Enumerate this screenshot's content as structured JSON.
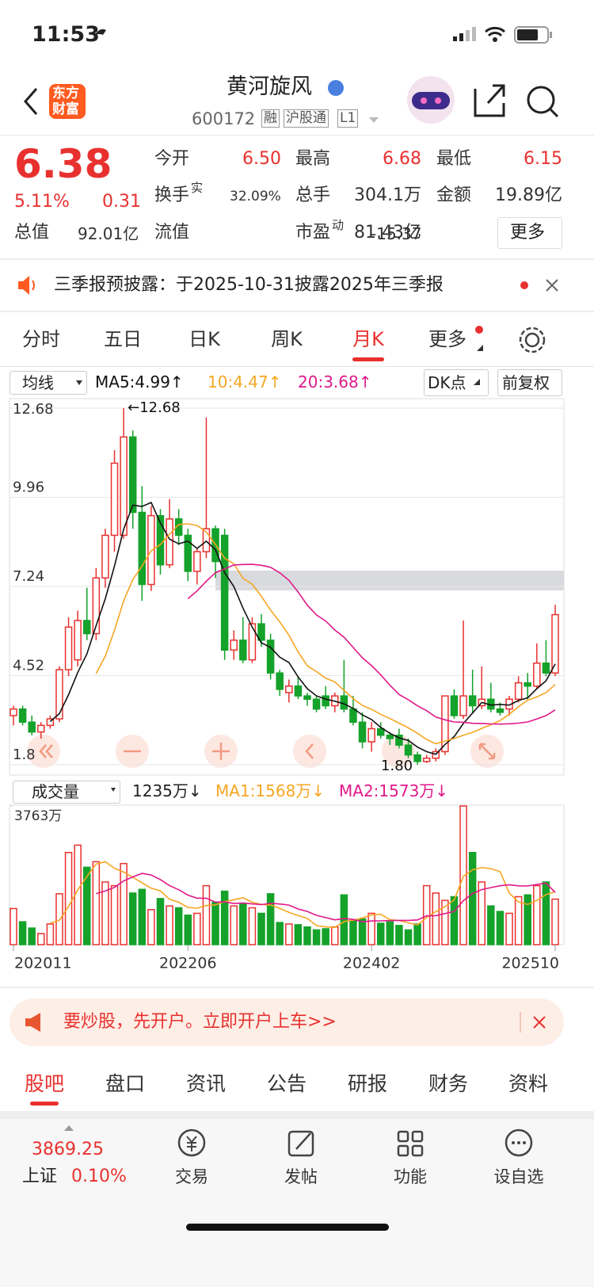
{
  "status_bar": {
    "time": "11:53"
  },
  "header": {
    "logo": [
      "东方",
      "财富"
    ],
    "name": "黄河旋风",
    "code": "600172",
    "tags": [
      "融",
      "沪股通",
      "L1"
    ]
  },
  "quote": {
    "price": "6.38",
    "change_pct": "5.11%",
    "change": "0.31",
    "row1": [
      {
        "label": "今开",
        "value": "6.50"
      },
      {
        "label": "最高",
        "value": "6.68"
      },
      {
        "label": "最低",
        "value": "6.15"
      }
    ],
    "row2": [
      {
        "label": "换手",
        "sup": "实",
        "value": "32.09%"
      },
      {
        "label": "总手",
        "value": "304.1万"
      },
      {
        "label": "金额",
        "value": "19.89亿"
      }
    ],
    "row3": [
      {
        "label": "总值",
        "value": "92.01亿"
      },
      {
        "label": "流值",
        "value": "81.43亿"
      },
      {
        "label": "市盈",
        "sup": "动",
        "value": "-15.37"
      }
    ],
    "more": "更多"
  },
  "notice": "三季报预披露：于2025-10-31披露2025年三季报",
  "period_tabs": {
    "items": [
      "分时",
      "五日",
      "日K",
      "周K",
      "月K",
      "更多"
    ],
    "active": 4
  },
  "chart_toolbar": {
    "selector": "均线",
    "ma_labels": [
      "MA5:4.99↑",
      "10:4.47↑",
      "20:3.68↑"
    ],
    "dk": "DK点",
    "adjust": "前复权"
  },
  "volume_toolbar": {
    "selector": "成交量",
    "current": "1235万↓",
    "ma_labels": [
      "MA1:1568万↓",
      "MA2:1573万↓"
    ]
  },
  "chart_data": [
    {
      "type": "candlestick",
      "ylim": [
        1.8,
        12.68
      ],
      "yticks": [
        12.68,
        9.96,
        7.24,
        4.52,
        1.8
      ],
      "grid": true,
      "up_color": "#e8312f",
      "down_color": "#14a22a",
      "open": [
        3.3,
        3.5,
        3.1,
        2.8,
        3.0,
        3.2,
        4.7,
        5.0,
        6.2,
        5.8,
        7.5,
        8.8,
        8.8,
        11.8,
        9.5,
        7.3,
        9.4,
        7.9,
        9.3,
        8.8,
        7.7,
        8.3,
        9.0,
        8.8,
        5.3,
        5.6,
        5.0,
        6.1,
        5.6,
        4.6,
        4.0,
        4.2,
        3.9,
        3.8,
        3.9,
        3.6,
        3.9,
        3.5,
        3.1,
        2.5,
        2.9,
        2.7,
        2.7,
        2.4,
        2.1,
        1.9,
        2.0,
        2.2,
        3.9,
        3.3,
        3.9,
        3.6,
        3.8,
        3.5,
        3.5,
        3.8,
        4.3,
        4.2,
        4.9,
        4.6
      ],
      "high": [
        3.6,
        3.6,
        3.3,
        3.1,
        3.3,
        4.8,
        6.3,
        6.5,
        7.2,
        7.8,
        9.0,
        11.4,
        12.68,
        12.0,
        10.3,
        9.7,
        9.6,
        9.9,
        9.6,
        9.0,
        8.4,
        12.4,
        9.1,
        9.0,
        5.9,
        6.3,
        6.3,
        6.4,
        5.8,
        4.7,
        4.4,
        4.5,
        4.0,
        3.9,
        4.2,
        4.0,
        5.0,
        3.9,
        3.4,
        3.1,
        3.1,
        2.8,
        2.9,
        2.6,
        2.2,
        2.1,
        2.3,
        3.9,
        4.1,
        6.2,
        4.7,
        4.8,
        4.3,
        3.7,
        3.9,
        4.5,
        4.6,
        5.5,
        5.6,
        6.68
      ],
      "low": [
        3.0,
        3.0,
        2.7,
        2.6,
        2.9,
        3.1,
        4.5,
        4.8,
        5.6,
        5.6,
        7.2,
        8.3,
        8.7,
        9.0,
        6.8,
        7.1,
        7.6,
        7.8,
        8.5,
        7.4,
        7.3,
        8.1,
        7.5,
        5.0,
        5.0,
        4.9,
        4.9,
        5.4,
        4.4,
        3.9,
        3.7,
        3.8,
        3.6,
        3.4,
        3.5,
        3.4,
        3.4,
        3.0,
        2.3,
        2.2,
        2.6,
        2.4,
        2.3,
        2.0,
        1.8,
        1.85,
        1.9,
        2.1,
        3.2,
        3.2,
        3.4,
        3.5,
        3.4,
        3.3,
        3.3,
        3.7,
        3.8,
        4.1,
        4.5,
        4.5
      ],
      "close": [
        3.5,
        3.1,
        2.8,
        3.0,
        3.2,
        4.7,
        6.0,
        6.2,
        5.8,
        7.5,
        8.8,
        11.0,
        11.8,
        9.5,
        7.3,
        9.4,
        7.9,
        9.3,
        8.8,
        7.7,
        8.3,
        9.0,
        8.0,
        5.3,
        5.6,
        5.0,
        6.1,
        5.6,
        4.6,
        4.1,
        4.2,
        3.9,
        3.8,
        3.5,
        3.6,
        3.9,
        3.5,
        3.1,
        2.5,
        2.9,
        2.7,
        2.6,
        2.4,
        2.1,
        1.9,
        2.0,
        2.2,
        3.9,
        3.3,
        3.9,
        3.6,
        3.8,
        3.5,
        3.4,
        3.8,
        4.3,
        4.2,
        4.9,
        4.6,
        6.38
      ],
      "moving_averages": [
        {
          "period": 5,
          "color": "#111111"
        },
        {
          "period": 10,
          "color": "#f5a623"
        },
        {
          "period": 20,
          "color": "#e0198a"
        }
      ],
      "annotations": [
        {
          "text": "←12.68",
          "value": 12.68
        },
        {
          "text": "1.80",
          "value": 1.8
        }
      ]
    },
    {
      "type": "bar",
      "ylim": [
        0,
        3763
      ],
      "yticks": [
        {
          "value": 3763,
          "label": "3763万"
        }
      ],
      "categories": [
        "202011",
        null,
        null,
        null,
        null,
        null,
        null,
        null,
        null,
        null,
        null,
        null,
        null,
        null,
        null,
        null,
        null,
        null,
        null,
        "202206",
        null,
        null,
        null,
        null,
        null,
        null,
        null,
        null,
        null,
        null,
        null,
        null,
        null,
        null,
        null,
        null,
        null,
        null,
        null,
        "202402",
        null,
        null,
        null,
        null,
        null,
        null,
        null,
        null,
        null,
        null,
        null,
        null,
        null,
        null,
        null,
        null,
        null,
        null,
        null,
        "202510"
      ],
      "values": [
        980,
        620,
        450,
        300,
        560,
        1380,
        2500,
        2700,
        2100,
        2250,
        1700,
        1600,
        2200,
        1400,
        1500,
        950,
        1250,
        1050,
        1000,
        800,
        850,
        1600,
        1150,
        1450,
        1050,
        1100,
        1000,
        850,
        1380,
        600,
        560,
        540,
        480,
        400,
        430,
        480,
        1350,
        650,
        700,
        850,
        580,
        620,
        520,
        400,
        560,
        1600,
        1400,
        1200,
        1300,
        3763,
        2500,
        1700,
        1050,
        900,
        850,
        1300,
        1350,
        1600,
        1700,
        1235
      ],
      "moving_averages": [
        {
          "period": 5,
          "color": "#f5a623"
        },
        {
          "period": 10,
          "color": "#e0198a"
        }
      ]
    }
  ],
  "ad": "要炒股，先开户。立即开户上车>>",
  "bottom_tabs": {
    "items": [
      "股吧",
      "盘口",
      "资讯",
      "公告",
      "研报",
      "财务",
      "资料"
    ],
    "active": 0
  },
  "footer": {
    "index_value": "3869.25",
    "index_name": "上证",
    "index_change": "0.10%",
    "nav": [
      "交易",
      "发帖",
      "功能",
      "设自选"
    ]
  }
}
